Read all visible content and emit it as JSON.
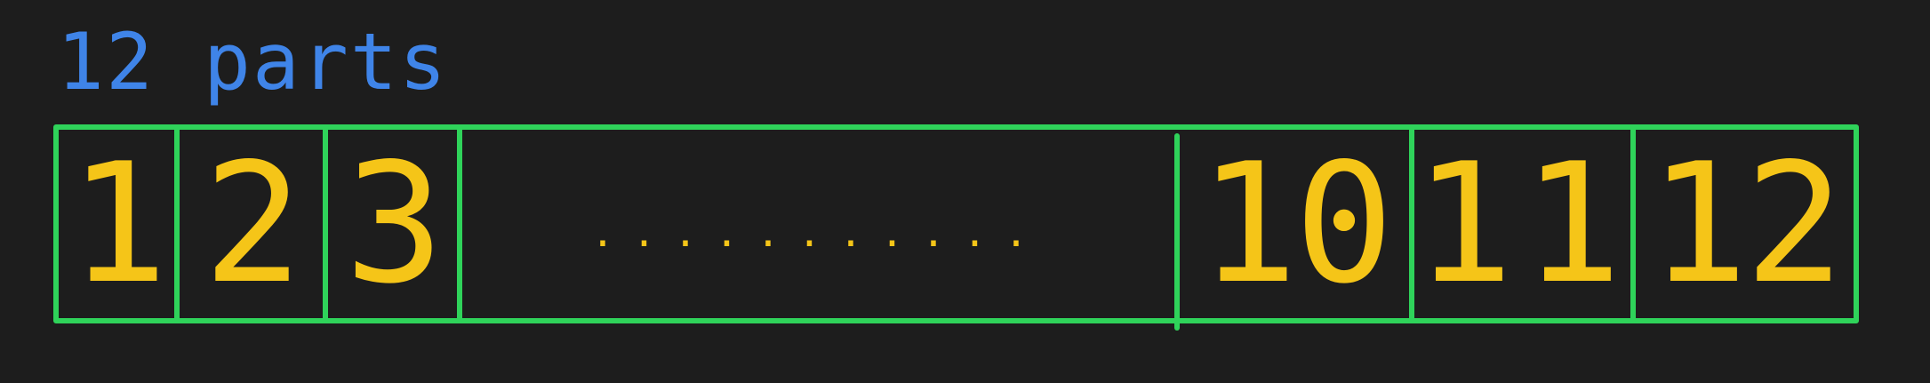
{
  "title": "12 parts",
  "cells": [
    "1",
    "2",
    "3",
    "10",
    "11",
    "12"
  ],
  "ellipsis": "...........",
  "colors": {
    "background": "#1d1d1d",
    "title": "#3f84e8",
    "frame": "#2fd35a",
    "digits": "#f5c518"
  }
}
